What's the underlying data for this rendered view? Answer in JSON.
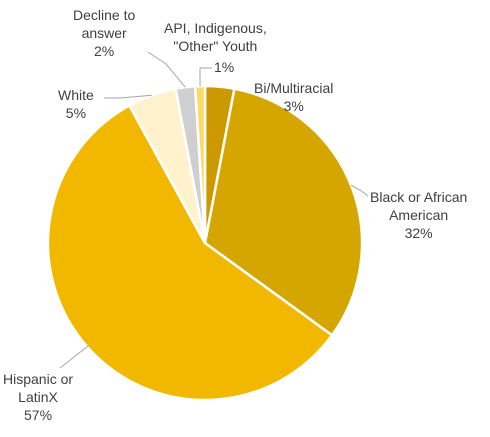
{
  "chart_data": {
    "type": "pie",
    "title": "",
    "start_angle_deg": 0,
    "direction": "clockwise",
    "slices": [
      {
        "label_lines": [
          "Bi/Multiracial"
        ],
        "value_text": "3%",
        "value": 3,
        "color": "#cc9900"
      },
      {
        "label_lines": [
          "Black or African",
          "American"
        ],
        "value_text": "32%",
        "value": 32,
        "color": "#d6a600"
      },
      {
        "label_lines": [
          "Hispanic or",
          "LatinX"
        ],
        "value_text": "57%",
        "value": 57,
        "color": "#f2b800"
      },
      {
        "label_lines": [
          "White"
        ],
        "value_text": "5%",
        "value": 5,
        "color": "#fff2cc"
      },
      {
        "label_lines": [
          "Decline to",
          "answer"
        ],
        "value_text": "2%",
        "value": 2,
        "color": "#cfcfcf"
      },
      {
        "label_lines": [
          "API, Indigenous,",
          "\"Other\" Youth"
        ],
        "value_text": "1%",
        "value": 1,
        "color": "#ffd966"
      }
    ],
    "slice_border_color": "#ffffff",
    "leader_line_color": "#a6a6a6",
    "label_color": "#404040"
  }
}
